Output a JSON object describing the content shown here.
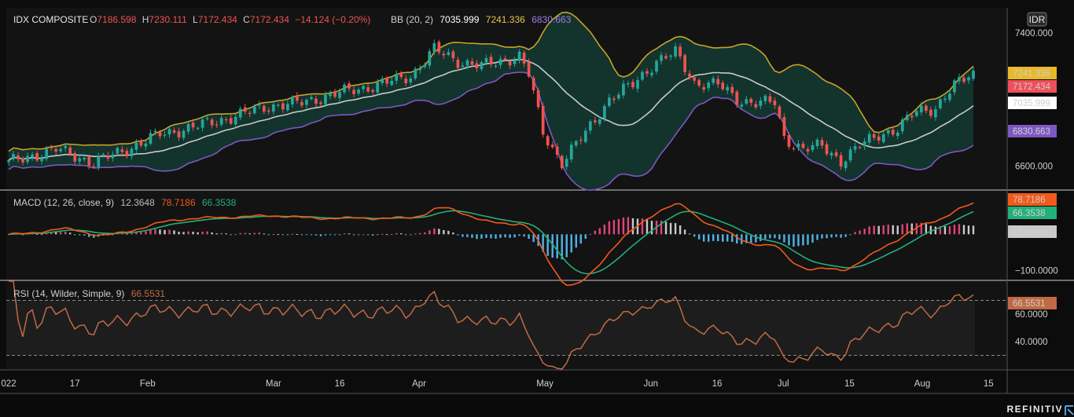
{
  "chart_data": [
    {
      "type": "candlestick",
      "symbol": "IDX COMPOSITE",
      "ohlc": {
        "o_label": "O",
        "o": "7186.598",
        "h_label": "H",
        "h": "7230.111",
        "l_label": "L",
        "l": "7172.434",
        "c_label": "C",
        "c": "7172.434",
        "change": "−14.124 (−0.20%)"
      },
      "bb_label": "BB (20, 2)",
      "bb_values": {
        "mid": "7035.999",
        "upper": "7241.336",
        "lower": "6830.663"
      },
      "currency_badge": "IDR",
      "y_ticks": [
        "7400.000",
        "6600.000"
      ],
      "ylim": [
        6460,
        7550
      ],
      "price_labels": {
        "upper": "7241.336",
        "last": "7172.434",
        "mid": "7035.999",
        "lower": "6830.663"
      },
      "key_close": [
        [
          0,
          6620
        ],
        [
          10,
          6700
        ],
        [
          18,
          6620
        ],
        [
          25,
          6700
        ],
        [
          32,
          6790
        ],
        [
          40,
          6840
        ],
        [
          48,
          6900
        ],
        [
          55,
          6960
        ],
        [
          62,
          6980
        ],
        [
          70,
          7040
        ],
        [
          77,
          7080
        ],
        [
          85,
          7140
        ],
        [
          90,
          7300
        ],
        [
          95,
          7230
        ],
        [
          100,
          7200
        ],
        [
          108,
          7260
        ],
        [
          110,
          7150
        ],
        [
          113,
          6800
        ],
        [
          117,
          6620
        ],
        [
          122,
          6800
        ],
        [
          127,
          7000
        ],
        [
          132,
          7090
        ],
        [
          137,
          7230
        ],
        [
          141,
          7280
        ],
        [
          145,
          7100
        ],
        [
          150,
          7090
        ],
        [
          154,
          7000
        ],
        [
          158,
          6980
        ],
        [
          162,
          6980
        ],
        [
          164,
          6770
        ],
        [
          168,
          6700
        ],
        [
          172,
          6720
        ],
        [
          176,
          6630
        ],
        [
          180,
          6720
        ],
        [
          184,
          6790
        ],
        [
          188,
          6820
        ],
        [
          192,
          6930
        ],
        [
          196,
          6950
        ],
        [
          200,
          7080
        ],
        [
          202,
          7120
        ],
        [
          204,
          7172.434
        ]
      ],
      "colors": {
        "up": "#26a69a",
        "down": "#ef5350",
        "bb_upper": "#c9a227",
        "bb_mid": "#c9c9c9",
        "bb_lower": "#7e57c2",
        "fill": "#143a33"
      }
    },
    {
      "type": "macd",
      "label": "MACD (12, 26, close, 9)",
      "hist_value": "12.3648",
      "macd_value": "78.7186",
      "signal_value": "66.3538",
      "y_ticks": [
        "−100.0000"
      ],
      "ylim": [
        -125,
        120
      ],
      "price_labels": {
        "macd": "78.7186",
        "signal": "66.3538",
        "hist": "12.3648"
      },
      "colors": {
        "macd": "#f05a1a",
        "signal": "#22b07a",
        "hist_pos": "#e0457a",
        "hist_pos_fade": "#c9c9c9",
        "hist_neg": "#4fb3e8"
      }
    },
    {
      "type": "rsi",
      "label": "RSI (14, Wilder, Simple, 9)",
      "value": "66.5531",
      "y_ticks": [
        "60.0000",
        "40.0000"
      ],
      "ylim": [
        20,
        84
      ],
      "bands": [
        70,
        30
      ],
      "color": "#c06a45"
    }
  ],
  "x_axis": {
    "labels": [
      {
        "text": "022",
        "day": 0
      },
      {
        "text": "17",
        "day": 10
      },
      {
        "text": "Feb",
        "day": 21
      },
      {
        "text": "Mar",
        "day": 40
      },
      {
        "text": "16",
        "day": 50
      },
      {
        "text": "Apr",
        "day": 62
      },
      {
        "text": "May",
        "day": 81
      },
      {
        "text": "Jun",
        "day": 97
      },
      {
        "text": "16",
        "day": 107
      },
      {
        "text": "Jul",
        "day": 117
      },
      {
        "text": "15",
        "day": 127
      },
      {
        "text": "Aug",
        "day": 138
      },
      {
        "text": "15",
        "day": 148
      }
    ],
    "last_day": 204
  },
  "footer": {
    "brand": "REFINITIV"
  }
}
